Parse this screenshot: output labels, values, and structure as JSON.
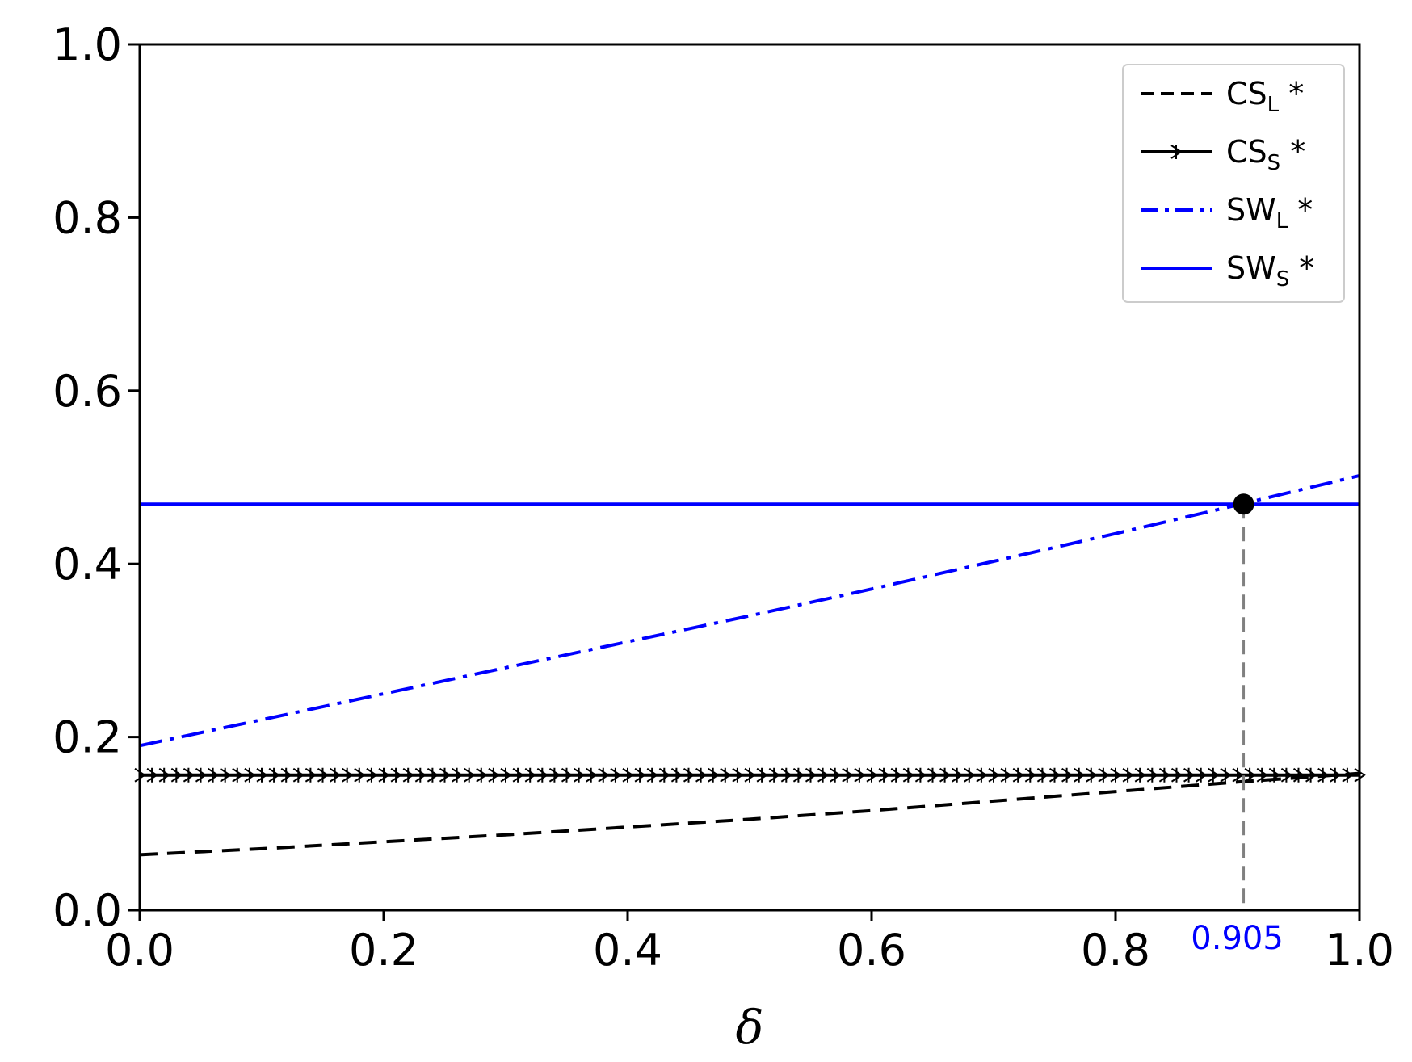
{
  "chart_data": {
    "type": "line",
    "xlabel": "δ",
    "ylabel": "",
    "xlim": [
      0.0,
      1.0
    ],
    "ylim": [
      0.0,
      1.0
    ],
    "x_ticks": [
      "0.0",
      "0.2",
      "0.4",
      "0.6",
      "0.8",
      "1.0"
    ],
    "y_ticks": [
      "0.0",
      "0.2",
      "0.4",
      "0.6",
      "0.8",
      "1.0"
    ],
    "grid": false,
    "legend_position": "top-right",
    "series": [
      {
        "name": "CS",
        "subscript": "L",
        "suffix": " *",
        "color": "#000000",
        "style": "dashed",
        "x": [
          0.0,
          0.1,
          0.2,
          0.3,
          0.4,
          0.5,
          0.6,
          0.7,
          0.8,
          0.9,
          1.0
        ],
        "values": [
          0.064,
          0.071,
          0.079,
          0.087,
          0.096,
          0.105,
          0.115,
          0.126,
          0.137,
          0.148,
          0.158
        ]
      },
      {
        "name": "CS",
        "subscript": "S",
        "suffix": " *",
        "color": "#000000",
        "style": "solid-marker",
        "x": [
          0.0,
          1.0
        ],
        "values": [
          0.156,
          0.156
        ]
      },
      {
        "name": "SW",
        "subscript": "L",
        "suffix": " *",
        "color": "#0000ff",
        "style": "dashdot",
        "x": [
          0.0,
          0.1,
          0.2,
          0.3,
          0.4,
          0.5,
          0.6,
          0.7,
          0.8,
          0.9,
          1.0
        ],
        "values": [
          0.19,
          0.22,
          0.25,
          0.28,
          0.31,
          0.34,
          0.371,
          0.403,
          0.435,
          0.468,
          0.502
        ]
      },
      {
        "name": "SW",
        "subscript": "S",
        "suffix": " *",
        "color": "#0000ff",
        "style": "solid",
        "x": [
          0.0,
          1.0
        ],
        "values": [
          0.469,
          0.469
        ]
      }
    ],
    "intersection": {
      "x": 0.905,
      "y": 0.469,
      "label": "0.905",
      "label_color": "#0000ff"
    }
  }
}
